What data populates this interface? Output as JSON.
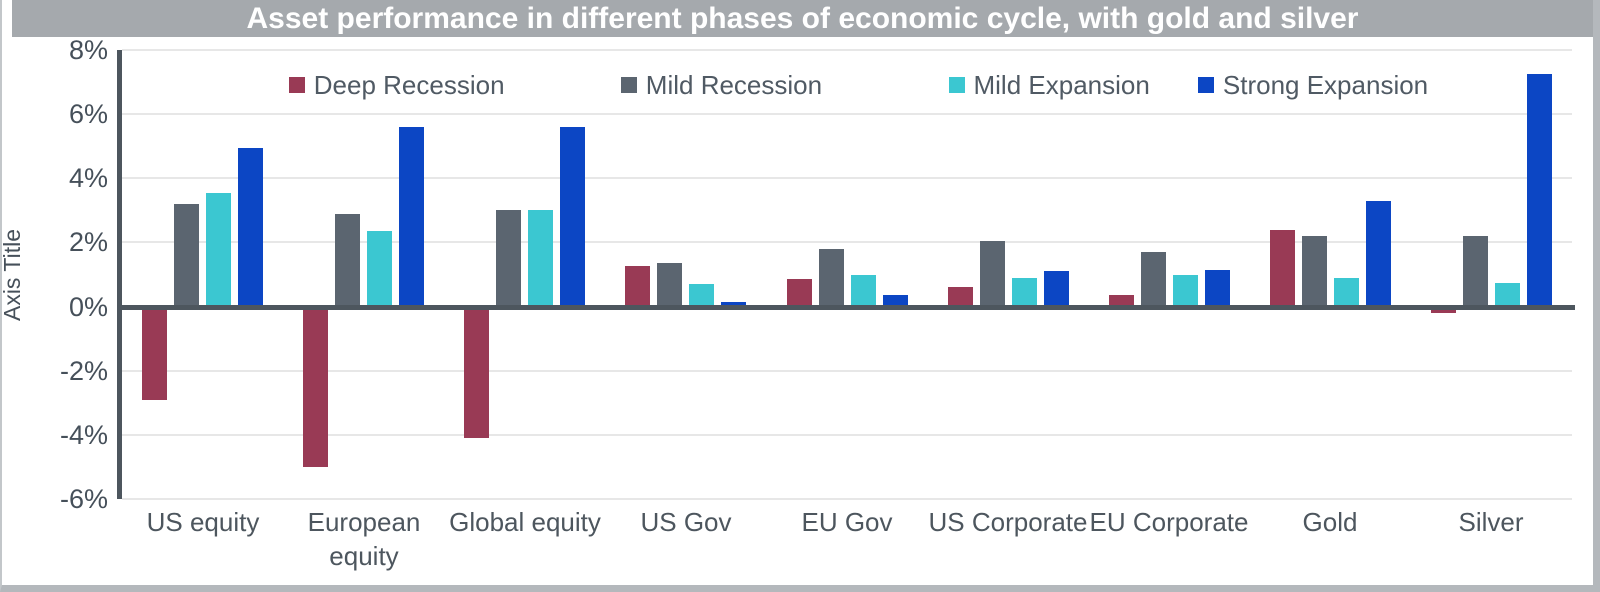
{
  "title": "Asset performance in different phases of economic cycle, with gold and silver",
  "colors": {
    "title_bar_bg": "#a5a9ad",
    "title_text": "#ffffff",
    "axis_line": "#4d565e",
    "gridline": "#e7e7e7",
    "tick_text": "#46505a",
    "legend_text": "#505a64"
  },
  "chart_data": {
    "type": "bar",
    "title": "Asset performance in different phases of economic cycle, with gold and silver",
    "xlabel": "",
    "ylabel": "Axis Title",
    "unit": "%",
    "ylim": [
      -6,
      8
    ],
    "ytick_step": 2,
    "ytick_labels": [
      "8%",
      "6%",
      "4%",
      "2%",
      "0%",
      "-2%",
      "-4%",
      "-6%"
    ],
    "grid": true,
    "legend_position": "top-inside",
    "categories": [
      "US equity",
      "European equity",
      "Global equity",
      "US Gov",
      "EU Gov",
      "US Corporate",
      "EU Corporate",
      "Gold",
      "Silver"
    ],
    "series": [
      {
        "name": "Deep Recession",
        "color": "#993a55",
        "values": [
          -2.9,
          -5.0,
          -4.1,
          1.25,
          0.85,
          0.6,
          0.35,
          2.4,
          -0.2
        ]
      },
      {
        "name": "Mild Recession",
        "color": "#5b6570",
        "values": [
          3.2,
          2.9,
          3.0,
          1.35,
          1.8,
          2.05,
          1.7,
          2.2,
          2.2
        ]
      },
      {
        "name": "Mild Expansion",
        "color": "#3bc7d1",
        "values": [
          3.55,
          2.35,
          3.0,
          0.7,
          1.0,
          0.9,
          1.0,
          0.9,
          0.75
        ]
      },
      {
        "name": "Strong Expansion",
        "color": "#0c46c4",
        "values": [
          4.95,
          5.6,
          5.6,
          0.15,
          0.35,
          1.1,
          1.15,
          3.3,
          7.25
        ]
      }
    ]
  }
}
